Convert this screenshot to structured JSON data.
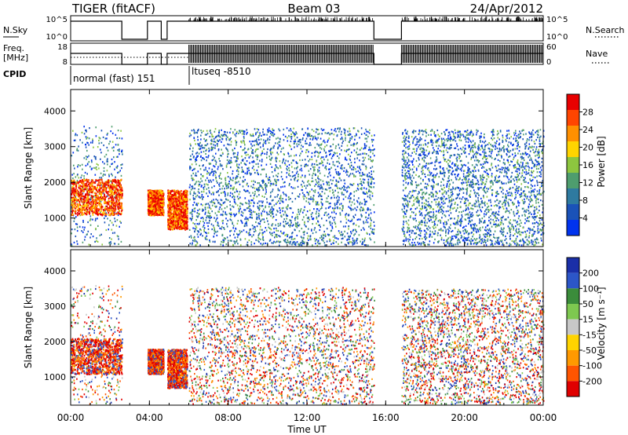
{
  "header": {
    "left": "TIGER (fitACF)",
    "center": "Beam 03",
    "right": "24/Apr/2012"
  },
  "noise_panel": {
    "left_label": "N.Sky",
    "right_label": "N.Search",
    "left_ticks": [
      "10^5",
      "10^0"
    ],
    "right_ticks": [
      "10^5",
      "10^0"
    ]
  },
  "freq_panel": {
    "left_label_1": "Freq.",
    "left_label_2": "[MHz]",
    "right_label": "Nave",
    "left_ticks": [
      "18",
      "8"
    ],
    "right_ticks": [
      "60",
      "0"
    ]
  },
  "cpid": {
    "label": "CPID",
    "modes": [
      "normal (fast) 151",
      "ltuseq -8510"
    ]
  },
  "chart_data": [
    {
      "type": "heatmap",
      "title": "",
      "ylabel": "Slant Range [km]",
      "yticks": [
        "1000",
        "2000",
        "3000",
        "4000"
      ],
      "ylim": [
        200,
        4600
      ],
      "xlim": [
        0,
        24
      ],
      "colorbar": {
        "label": "Power [dB]",
        "ticks": [
          "4",
          "8",
          "12",
          "16",
          "20",
          "24",
          "28"
        ],
        "colors": [
          "#0033ee",
          "#1a52b8",
          "#2e7aa0",
          "#4e9d6e",
          "#8dc63f",
          "#ffd400",
          "#ff9000",
          "#ff4500",
          "#e80000"
        ]
      },
      "scatter_regions": [
        {
          "t_start": 0.0,
          "t_end": 2.6,
          "r_min": 250,
          "r_max": 3600,
          "note": "sparse"
        },
        {
          "t_start": 6.0,
          "t_end": 15.4,
          "r_min": 250,
          "r_max": 3550,
          "note": "dense"
        },
        {
          "t_start": 16.8,
          "t_end": 24.0,
          "r_min": 250,
          "r_max": 3500,
          "note": "dense"
        }
      ],
      "echo_bands": [
        {
          "t_start": 0.0,
          "t_end": 2.6,
          "r_min": 1100,
          "r_max": 2100,
          "level": "high"
        },
        {
          "t_start": 3.9,
          "t_end": 4.7,
          "r_min": 1100,
          "r_max": 1800,
          "level": "high"
        },
        {
          "t_start": 4.9,
          "t_end": 5.9,
          "r_min": 700,
          "r_max": 1800,
          "level": "high"
        }
      ],
      "data_gaps": [
        [
          2.6,
          3.9
        ],
        [
          4.7,
          4.9
        ],
        [
          15.4,
          16.8
        ]
      ]
    },
    {
      "type": "heatmap",
      "title": "",
      "ylabel": "Slant Range [km]",
      "yticks": [
        "1000",
        "2000",
        "3000",
        "4000"
      ],
      "ylim": [
        200,
        4600
      ],
      "xlim": [
        0,
        24
      ],
      "xlabel": "Time UT",
      "xticks": [
        "00:00",
        "04:00",
        "08:00",
        "12:00",
        "16:00",
        "20:00",
        "00:00"
      ],
      "colorbar": {
        "label": "Velocity [m s⁻¹]",
        "ticks": [
          "200",
          "100",
          "50",
          "15",
          "-15",
          "-50",
          "-100",
          "-200"
        ],
        "colors": [
          "#1a2fa8",
          "#2c56c8",
          "#3b8c3b",
          "#7ec850",
          "#c8c8c8",
          "#ffd400",
          "#ff9900",
          "#ff5500",
          "#e00000"
        ]
      },
      "scatter_regions": [
        {
          "t_start": 0.0,
          "t_end": 2.6,
          "r_min": 250,
          "r_max": 3600,
          "note": "sparse"
        },
        {
          "t_start": 6.0,
          "t_end": 15.4,
          "r_min": 250,
          "r_max": 3550,
          "note": "dense"
        },
        {
          "t_start": 16.8,
          "t_end": 24.0,
          "r_min": 250,
          "r_max": 3500,
          "note": "dense"
        }
      ],
      "echo_bands": [
        {
          "t_start": 0.0,
          "t_end": 2.6,
          "r_min": 1100,
          "r_max": 2100,
          "level": "negative"
        },
        {
          "t_start": 3.9,
          "t_end": 4.7,
          "r_min": 1100,
          "r_max": 1800,
          "level": "negative"
        },
        {
          "t_start": 4.9,
          "t_end": 5.9,
          "r_min": 700,
          "r_max": 1800,
          "level": "negative"
        }
      ],
      "data_gaps": [
        [
          2.6,
          3.9
        ],
        [
          4.7,
          4.9
        ],
        [
          15.4,
          16.8
        ]
      ]
    }
  ]
}
